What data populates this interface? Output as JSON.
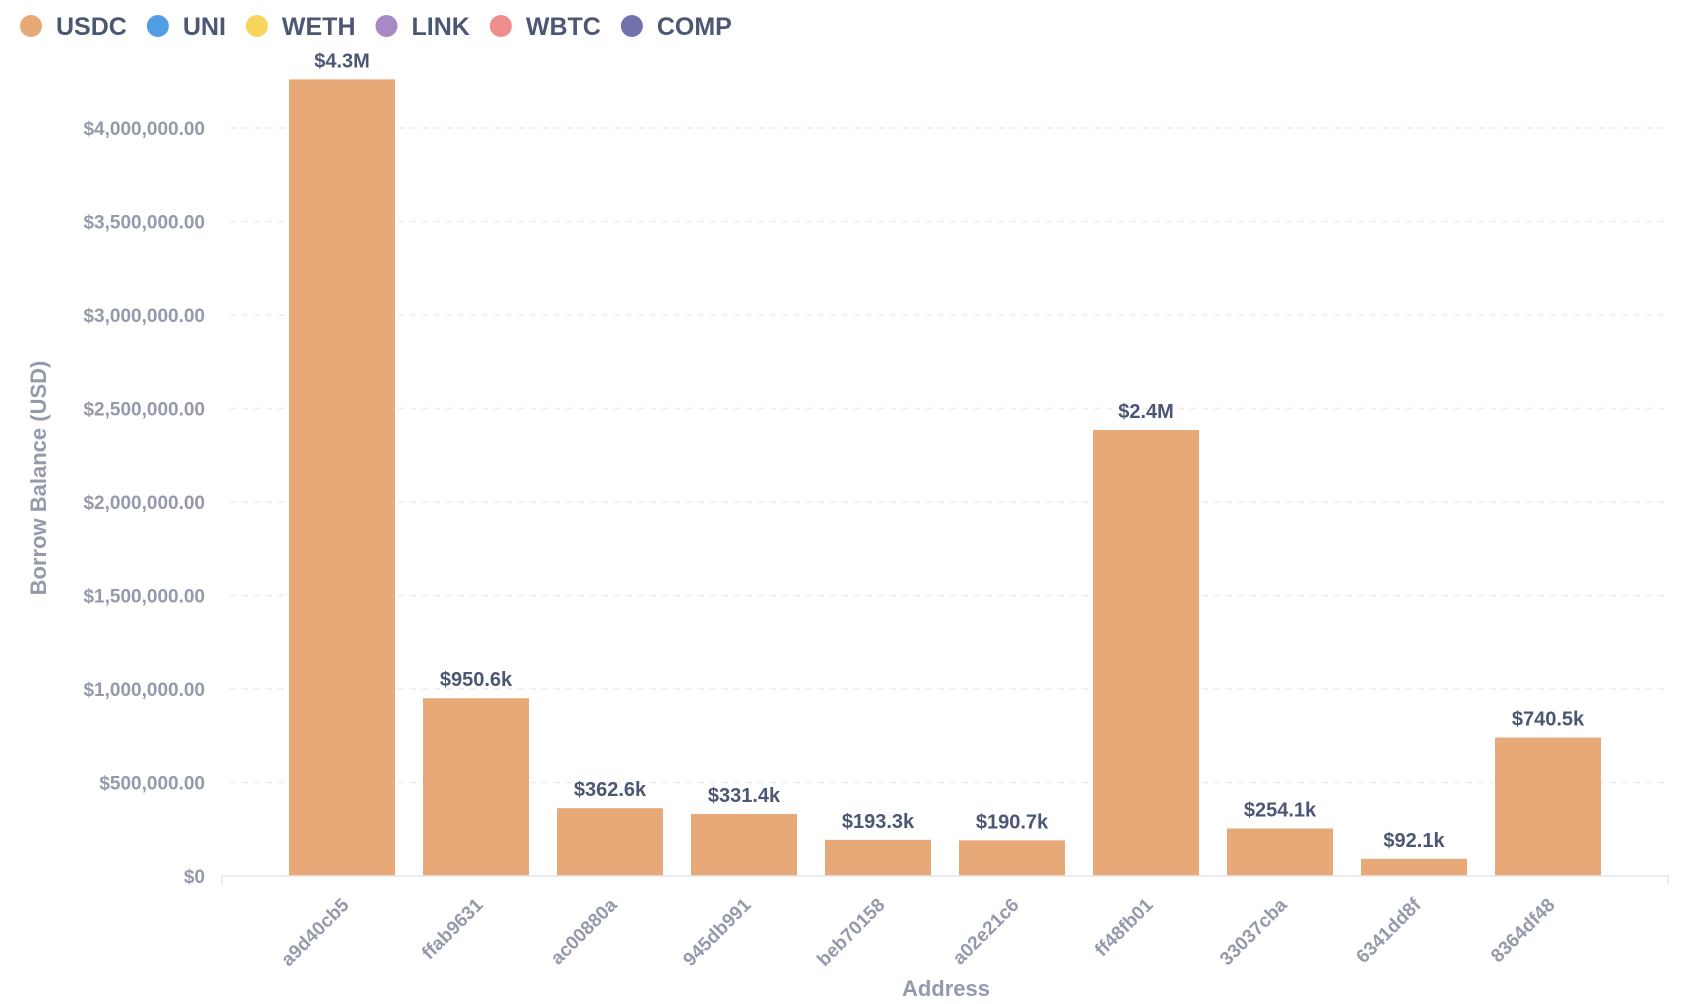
{
  "chart_data": {
    "type": "bar",
    "xlabel": "Address",
    "ylabel": "Borrow Balance (USD)",
    "ylim": [
      0,
      4500000
    ],
    "y_ticks": [
      0,
      500000,
      1000000,
      1500000,
      2000000,
      2500000,
      3000000,
      3500000,
      4000000
    ],
    "y_tick_labels": [
      "$0",
      "$500,000.00",
      "$1,000,000.00",
      "$1,500,000.00",
      "$2,000,000.00",
      "$2,500,000.00",
      "$3,000,000.00",
      "$3,500,000.00",
      "$4,000,000.00"
    ],
    "grid": true,
    "legend_position": "top-left",
    "legend": [
      {
        "name": "USDC",
        "color": "#e8a978"
      },
      {
        "name": "UNI",
        "color": "#509ee3"
      },
      {
        "name": "WETH",
        "color": "#f9d45c"
      },
      {
        "name": "LINK",
        "color": "#a989c5"
      },
      {
        "name": "WBTC",
        "color": "#ef8c8c"
      },
      {
        "name": "COMP",
        "color": "#7172ad"
      }
    ],
    "categories": [
      "a9d40cb5",
      "ffab9631",
      "ac00880a",
      "945db991",
      "beb70158",
      "a02e21c6",
      "ff48fb01",
      "33037cba",
      "6341dd8f",
      "8364df48"
    ],
    "series": [
      {
        "name": "USDC",
        "color": "#e8a978",
        "values": [
          4260000,
          950600,
          362600,
          331400,
          193300,
          190700,
          2385000,
          254100,
          92100,
          740500
        ],
        "labels": [
          "$4.3M",
          "$950.6k",
          "$362.6k",
          "$331.4k",
          "$193.3k",
          "$190.7k",
          "$2.4M",
          "$254.1k",
          "$92.1k",
          "$740.5k"
        ]
      }
    ]
  }
}
